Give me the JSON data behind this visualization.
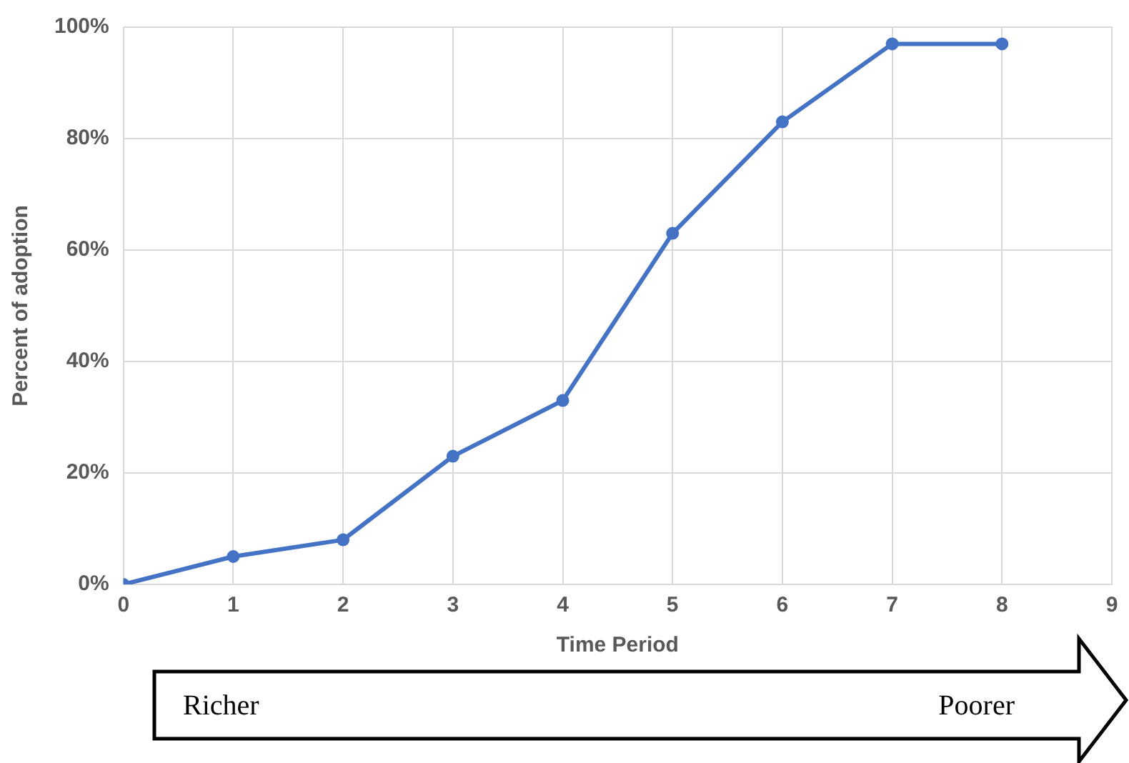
{
  "chart_data": {
    "type": "line",
    "xlabel": "Time Period",
    "ylabel": "Percent of adoption",
    "x": [
      0,
      1,
      2,
      3,
      4,
      5,
      6,
      7,
      8
    ],
    "series": [
      {
        "color": "#4472c4",
        "values": [
          0,
          5,
          8,
          23,
          33,
          63,
          83,
          97,
          97
        ]
      }
    ],
    "xlim": [
      0,
      9
    ],
    "xticks": [
      0,
      1,
      2,
      3,
      4,
      5,
      6,
      7,
      8,
      9
    ],
    "ylim": [
      0,
      100
    ],
    "yticks": [
      {
        "value": 0,
        "label": "0%"
      },
      {
        "value": 20,
        "label": "20%"
      },
      {
        "value": 40,
        "label": "40%"
      },
      {
        "value": 60,
        "label": "60%"
      },
      {
        "value": 80,
        "label": "80%"
      },
      {
        "value": 100,
        "label": "100%"
      }
    ],
    "grid": true,
    "legend": false,
    "marker": "circle",
    "line_style": "solid",
    "annotations": [
      "Richer",
      "Poorer"
    ]
  }
}
